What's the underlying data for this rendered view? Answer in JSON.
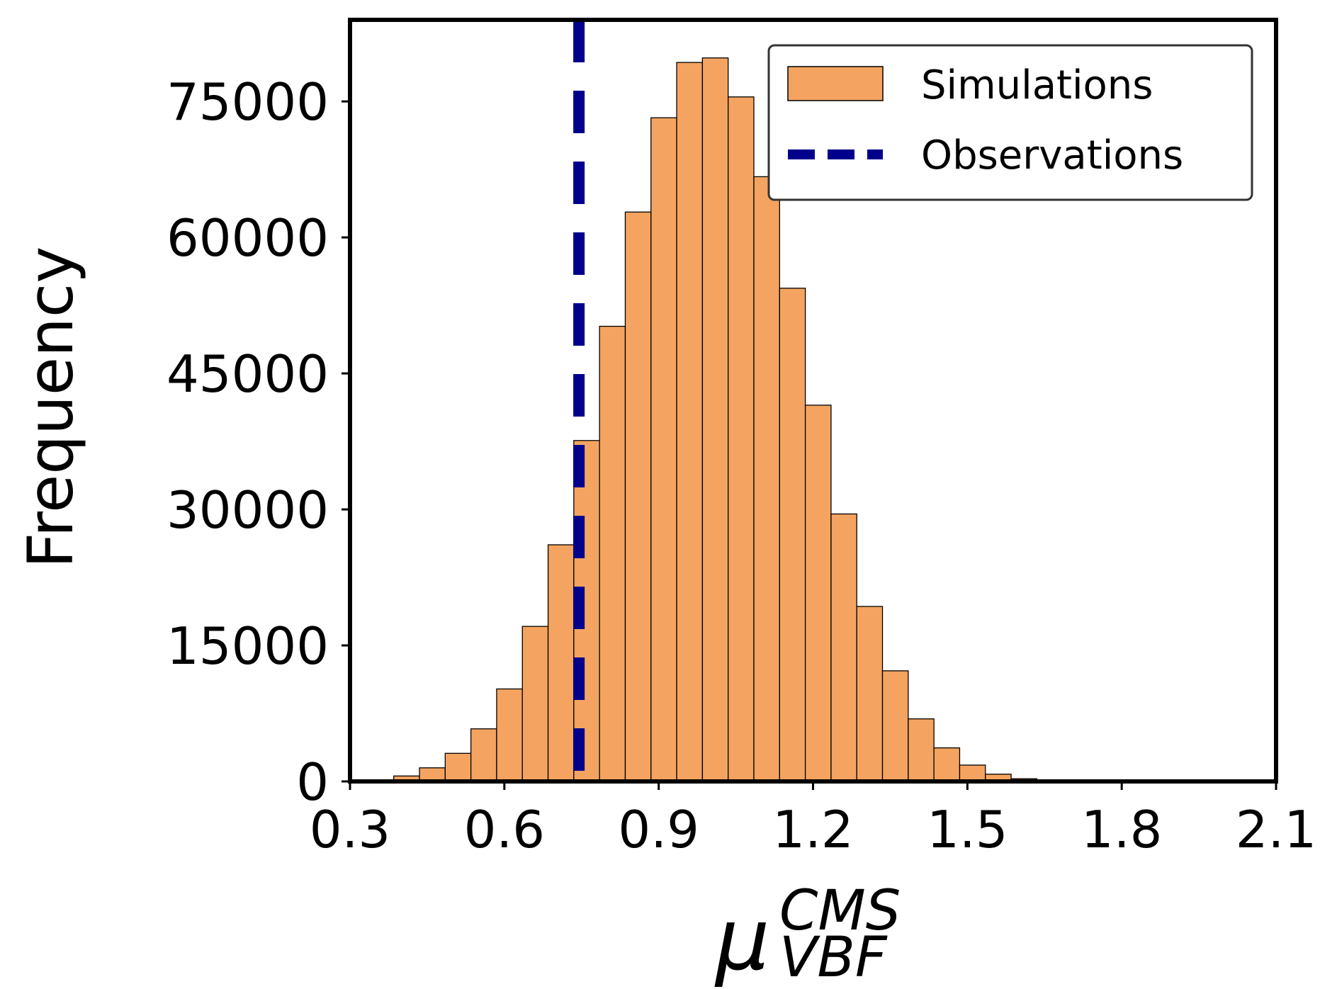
{
  "chart_data": {
    "type": "bar",
    "title": "",
    "xlabel": {
      "base": "μ",
      "sup": "CMS",
      "sub": "VBF"
    },
    "ylabel": "Frequency",
    "xlim": [
      0.3,
      2.1
    ],
    "ylim": [
      0,
      84000
    ],
    "xticks": [
      0.3,
      0.6,
      0.9,
      1.2,
      1.5,
      1.8,
      2.1
    ],
    "xtick_labels": [
      "0.3",
      "0.6",
      "0.9",
      "1.2",
      "1.5",
      "1.8",
      "2.1"
    ],
    "yticks": [
      0,
      15000,
      30000,
      45000,
      60000,
      75000
    ],
    "ytick_labels": [
      "0",
      "15000",
      "30000",
      "45000",
      "60000",
      "75000"
    ],
    "bin_width": 0.05,
    "bins_start": [
      0.335,
      0.385,
      0.435,
      0.485,
      0.535,
      0.585,
      0.635,
      0.685,
      0.735,
      0.785,
      0.835,
      0.885,
      0.935,
      0.985,
      1.035,
      1.085,
      1.135,
      1.185,
      1.235,
      1.285,
      1.335,
      1.385,
      1.435,
      1.485,
      1.535,
      1.585,
      1.635
    ],
    "values": [
      150,
      600,
      1500,
      3100,
      5800,
      10200,
      17100,
      26100,
      37600,
      50200,
      62800,
      73200,
      79300,
      79800,
      75500,
      66700,
      54400,
      41500,
      29500,
      19300,
      12200,
      6900,
      3700,
      1800,
      800,
      300,
      100
    ],
    "observed_value": 0.745,
    "colors": {
      "bars": "#F4A460",
      "bar_edge": "#000000",
      "observed": "#00008B"
    },
    "legend": {
      "position": "top-right",
      "entries": [
        {
          "label": "Simulations",
          "kind": "patch"
        },
        {
          "label": "Observations",
          "kind": "dashed-line"
        }
      ]
    },
    "grid": false
  }
}
